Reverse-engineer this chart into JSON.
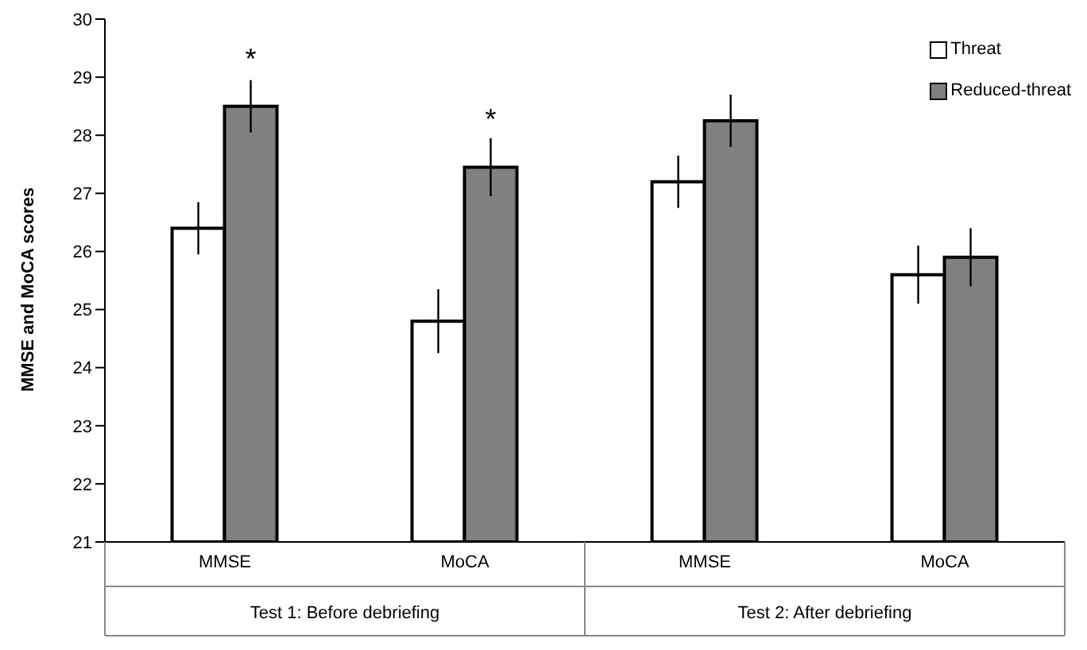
{
  "chart_data": {
    "type": "bar",
    "ylabel": "MMSE and MoCA scores",
    "categories": [
      "MMSE",
      "MoCA",
      "MMSE",
      "MoCA"
    ],
    "series": [
      {
        "name": "Threat",
        "color": "#ffffff",
        "values": [
          26.4,
          24.8,
          27.2,
          25.6
        ],
        "errors": [
          0.45,
          0.55,
          0.45,
          0.5
        ]
      },
      {
        "name": "Reduced-threat",
        "color": "#808080",
        "values": [
          28.5,
          27.45,
          28.25,
          25.9
        ],
        "errors": [
          0.45,
          0.5,
          0.45,
          0.5
        ],
        "value_labels": [
          "*",
          "*",
          null,
          null
        ]
      }
    ],
    "ylim": [
      21,
      30
    ],
    "yticks": [
      21,
      22,
      23,
      24,
      25,
      26,
      27,
      28,
      29,
      30
    ],
    "legend": "top right",
    "annotations": [
      "Test 1: Before debriefing",
      "Test 2: After debriefing"
    ]
  }
}
